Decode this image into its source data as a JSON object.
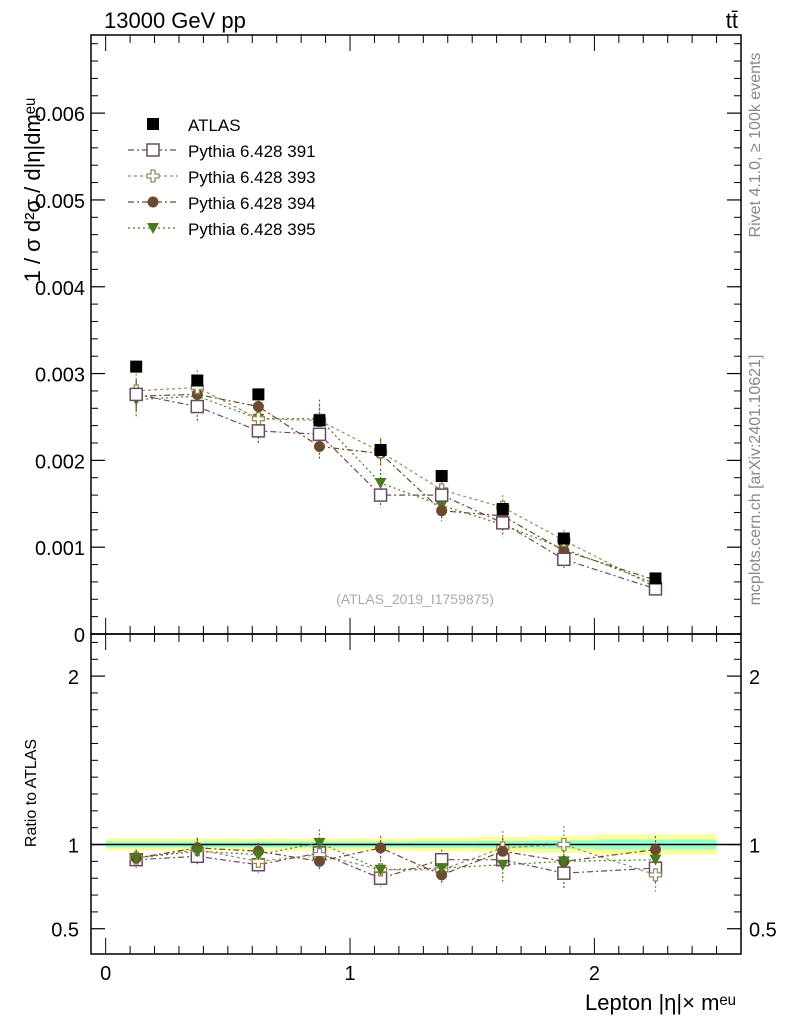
{
  "header": {
    "left": "13000 GeV pp",
    "right": "tt̄"
  },
  "side_labels": {
    "rivet": "Rivet 4.1.0, ≥ 100k events",
    "mcplots": "mcplots.cern.ch [arXiv:2401.10621]"
  },
  "watermark": "(ATLAS_2019_I1759875)",
  "main_ylabel": "1 / σ  d²σ / d|η|dmᵉᵘ",
  "ratio_ylabel": "Ratio to ATLAS",
  "xlabel": "Lepton |η|× mᵉᵘ",
  "colors": {
    "atlas": "#000000",
    "p391": "#6b4a5e",
    "p393": "#9a8a5a",
    "p394": "#6b4a2e",
    "p395": "#4a7a1e",
    "band_outer": "#ffff99",
    "band_inner": "#99ffcc"
  },
  "chart_data": [
    {
      "type": "scatter",
      "title": "",
      "xlabel": "Lepton |η|× mᵉᵘ",
      "ylabel": "1 / σ  d²σ / d|η|dmᵉᵘ",
      "xlim": [
        -0.06,
        2.6
      ],
      "ylim": [
        0,
        0.0069
      ],
      "x_ticks": [
        0,
        1,
        2
      ],
      "y_ticks": [
        0,
        0.001,
        0.002,
        0.003,
        0.004,
        0.005,
        0.006
      ],
      "y_tick_labels": [
        "0",
        "0.001",
        "0.002",
        "0.003",
        "0.004",
        "0.005",
        "0.006"
      ],
      "x": [
        0.125,
        0.375,
        0.625,
        0.875,
        1.125,
        1.375,
        1.625,
        1.875,
        2.25
      ],
      "legend_position": "top-left",
      "series": [
        {
          "name": "ATLAS",
          "marker": "square-filled",
          "values": [
            0.00308,
            0.00292,
            0.00276,
            0.00246,
            0.00212,
            0.00182,
            0.00144,
            0.0011,
            0.00064
          ],
          "errors": [
            0,
            0,
            0,
            0,
            0,
            0,
            0,
            0,
            0
          ]
        },
        {
          "name": "Pythia 6.428 391",
          "marker": "square-open",
          "values": [
            0.00276,
            0.00262,
            0.00234,
            0.0023,
            0.0016,
            0.0016,
            0.00128,
            0.00086,
            0.00052
          ],
          "errors": [
            0.00018,
            0.00018,
            0.00016,
            0.00016,
            0.00014,
            0.00012,
            0.00012,
            0.0001,
            6e-05
          ]
        },
        {
          "name": "Pythia 6.428 393",
          "marker": "plus-open",
          "values": [
            0.0028,
            0.00284,
            0.00248,
            0.00246,
            0.0021,
            0.00166,
            0.00146,
            0.00108,
            0.00054
          ],
          "errors": [
            0.0002,
            0.0002,
            0.00018,
            0.00018,
            0.00016,
            0.00014,
            0.00014,
            0.00012,
            8e-05
          ]
        },
        {
          "name": "Pythia 6.428 394",
          "marker": "circle-filled",
          "values": [
            0.00274,
            0.00276,
            0.00262,
            0.00216,
            0.00208,
            0.00142,
            0.00136,
            0.00096,
            0.00062
          ],
          "errors": [
            0.00018,
            0.00018,
            0.00016,
            0.00016,
            0.00016,
            0.00012,
            0.00012,
            0.0001,
            6e-05
          ]
        },
        {
          "name": "Pythia 6.428 395",
          "marker": "triangle-down-filled",
          "values": [
            0.0027,
            0.00274,
            0.00248,
            0.00248,
            0.00174,
            0.00148,
            0.00126,
            0.00098,
            0.00058
          ],
          "errors": [
            0.0002,
            0.0002,
            0.00018,
            0.00022,
            0.00016,
            0.00014,
            0.00014,
            0.00012,
            8e-05
          ]
        }
      ]
    },
    {
      "type": "scatter",
      "title": "",
      "xlabel": "Lepton |η|× mᵉᵘ",
      "ylabel": "Ratio to ATLAS",
      "xlim": [
        -0.06,
        2.6
      ],
      "ylim": [
        0.35,
        2.25
      ],
      "x_ticks": [
        0,
        1,
        2
      ],
      "y_ticks": [
        0.5,
        1,
        2
      ],
      "y_tick_labels": [
        "0.5",
        "1",
        "2"
      ],
      "x": [
        0.125,
        0.375,
        0.625,
        0.875,
        1.125,
        1.375,
        1.625,
        1.875,
        2.25
      ],
      "band": {
        "x": [
          0,
          0.25,
          0.5,
          0.75,
          1,
          1.25,
          1.5,
          1.75,
          2,
          2.5
        ],
        "outer": [
          0.035,
          0.035,
          0.035,
          0.035,
          0.035,
          0.04,
          0.045,
          0.05,
          0.06
        ],
        "inner": [
          0.018,
          0.018,
          0.018,
          0.018,
          0.018,
          0.02,
          0.022,
          0.025,
          0.03
        ]
      },
      "series": [
        {
          "name": "Pythia 6.428 391",
          "values": [
            0.91,
            0.93,
            0.88,
            0.95,
            0.8,
            0.91,
            0.91,
            0.83,
            0.86
          ],
          "errors": [
            0.05,
            0.06,
            0.05,
            0.06,
            0.05,
            0.06,
            0.07,
            0.09,
            0.09
          ]
        },
        {
          "name": "Pythia 6.428 393",
          "values": [
            0.92,
            0.97,
            0.9,
            0.94,
            0.85,
            0.85,
            0.98,
            1.0,
            0.82
          ],
          "errors": [
            0.05,
            0.07,
            0.06,
            0.07,
            0.06,
            0.07,
            0.1,
            0.11,
            0.1
          ]
        },
        {
          "name": "Pythia 6.428 394",
          "values": [
            0.92,
            0.98,
            0.96,
            0.9,
            0.98,
            0.82,
            0.96,
            0.9,
            0.97
          ],
          "errors": [
            0.05,
            0.06,
            0.05,
            0.06,
            0.07,
            0.06,
            0.08,
            0.09,
            0.08
          ]
        },
        {
          "name": "Pythia 6.428 395",
          "values": [
            0.92,
            0.96,
            0.94,
            1.01,
            0.85,
            0.86,
            0.88,
            0.9,
            0.91
          ],
          "errors": [
            0.05,
            0.07,
            0.06,
            0.08,
            0.06,
            0.07,
            0.1,
            0.11,
            0.1
          ]
        }
      ]
    }
  ]
}
